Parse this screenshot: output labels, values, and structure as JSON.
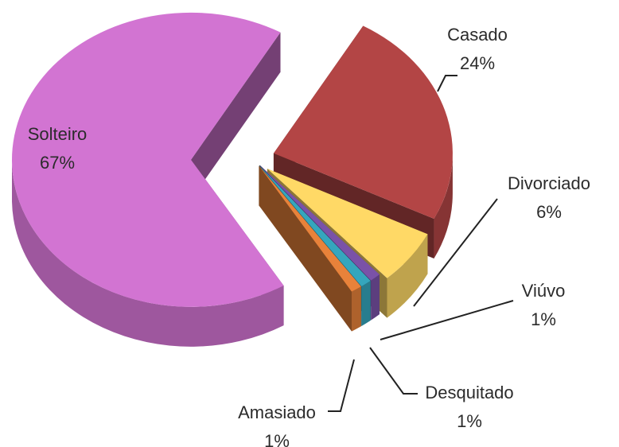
{
  "chart_data": {
    "type": "pie",
    "categories": [
      "Casado",
      "Divorciado",
      "Viúvo",
      "Desquitado",
      "Amasiado",
      "Solteiro"
    ],
    "values": [
      24,
      6,
      1,
      1,
      1,
      67
    ],
    "value_labels": [
      "24%",
      "6%",
      "1%",
      "1%",
      "1%",
      "67%"
    ],
    "colors": [
      "#b34545",
      "#ffd966",
      "#7a52a8",
      "#35a6bd",
      "#e8823a",
      "#d274d2"
    ]
  }
}
